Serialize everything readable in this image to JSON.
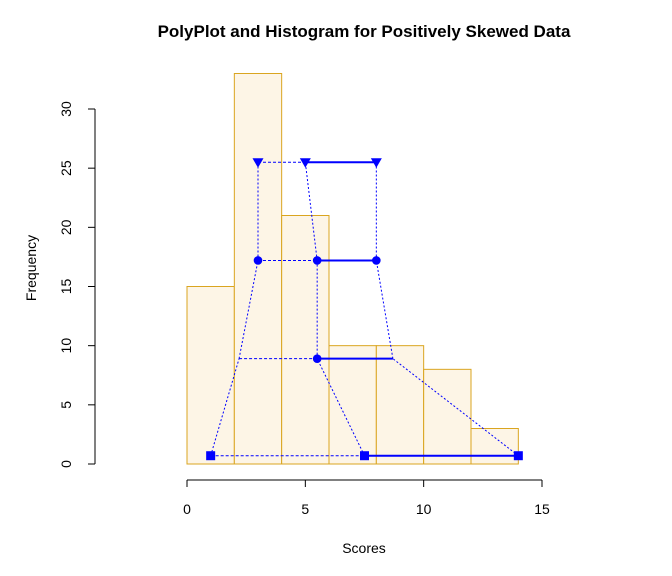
{
  "chart_data": {
    "type": "histogram",
    "title": "PolyPlot and Histogram for Positively Skewed Data",
    "xlabel": "Scores",
    "ylabel": "Frequency",
    "xlim": [
      -1.7,
      15.7
    ],
    "ylim": [
      0,
      33
    ],
    "x_ticks": [
      0,
      5,
      10,
      15
    ],
    "y_ticks": [
      0,
      5,
      10,
      15,
      20,
      25,
      30
    ],
    "histogram": {
      "bin_edges": [
        0,
        2,
        4,
        6,
        8,
        10,
        12,
        14
      ],
      "counts": [
        15,
        33,
        21,
        10,
        10,
        8,
        3
      ],
      "fill": "#fdf5e6",
      "border": "#daa520"
    },
    "polyplot": {
      "color": "#0000ff",
      "levels": [
        {
          "y": 0.7,
          "left": 1.0,
          "center": 7.5,
          "right": 14.0,
          "marker": "square"
        },
        {
          "y": 8.9,
          "left": 2.2,
          "center": 5.5,
          "right": 8.7,
          "marker": "circle",
          "hidden_markers": [
            "left",
            "right"
          ]
        },
        {
          "y": 17.2,
          "left": 3.0,
          "center": 5.5,
          "right": 8.0,
          "marker": "circle"
        },
        {
          "y": 25.5,
          "left": 3.0,
          "center": 5.0,
          "right": 8.0,
          "marker": "triangle-down"
        }
      ]
    }
  }
}
